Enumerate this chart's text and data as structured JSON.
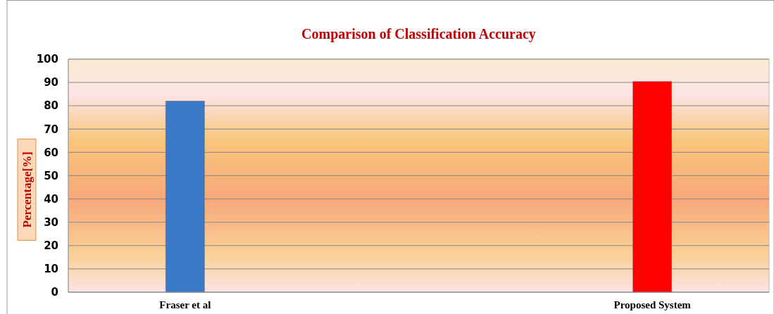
{
  "chart_data": {
    "type": "bar",
    "title": "Comparison of Classification Accuracy",
    "ylabel": "Percentage[%]",
    "categories": [
      "Fraser et al",
      "Proposed System"
    ],
    "values": [
      82,
      90.4
    ],
    "colors": [
      "#3a78c8",
      "#ff0000"
    ],
    "ylim": [
      0,
      100
    ],
    "yticks": [
      0,
      10,
      20,
      30,
      40,
      50,
      60,
      70,
      80,
      90,
      100
    ],
    "grid": "y"
  }
}
